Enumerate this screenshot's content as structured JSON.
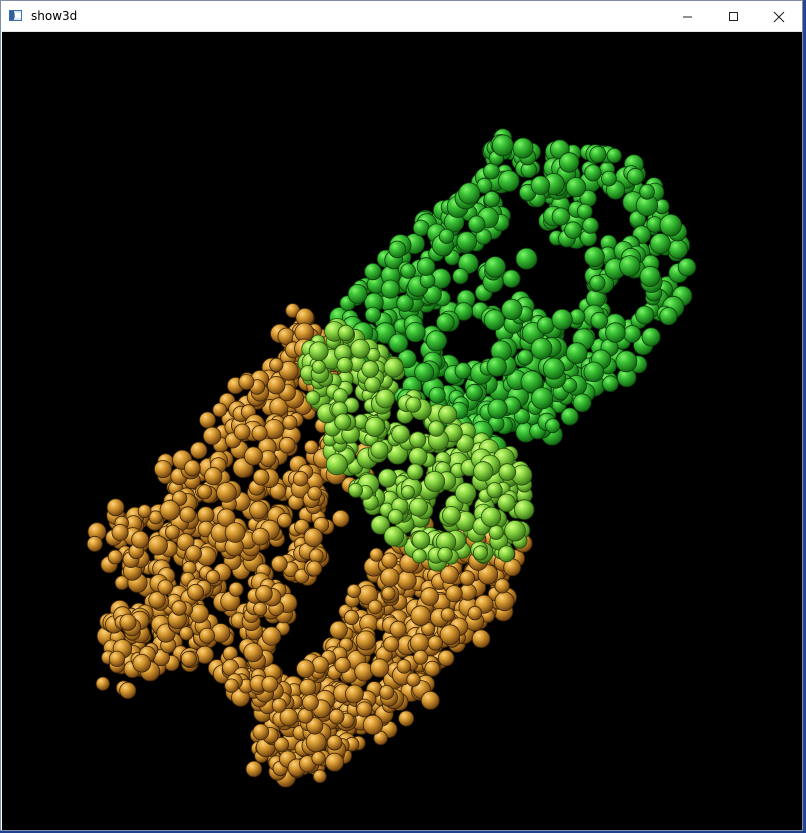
{
  "window": {
    "title": "show3d",
    "controls": {
      "minimize_icon": "minimize-icon",
      "maximize_icon": "maximize-icon",
      "close_icon": "close-icon"
    }
  },
  "viewport": {
    "background": "#000000",
    "clusters": [
      {
        "name": "green",
        "colors": [
          "#2ea32c",
          "#36bd35",
          "#4bc542",
          "#1d7f1f"
        ]
      },
      {
        "name": "lime",
        "colors": [
          "#75c93b",
          "#8ddb47",
          "#a5e04d",
          "#5aa82b"
        ]
      },
      {
        "name": "orange",
        "colors": [
          "#c98a25",
          "#d69a30",
          "#e3a73c",
          "#9f6517"
        ]
      }
    ]
  }
}
